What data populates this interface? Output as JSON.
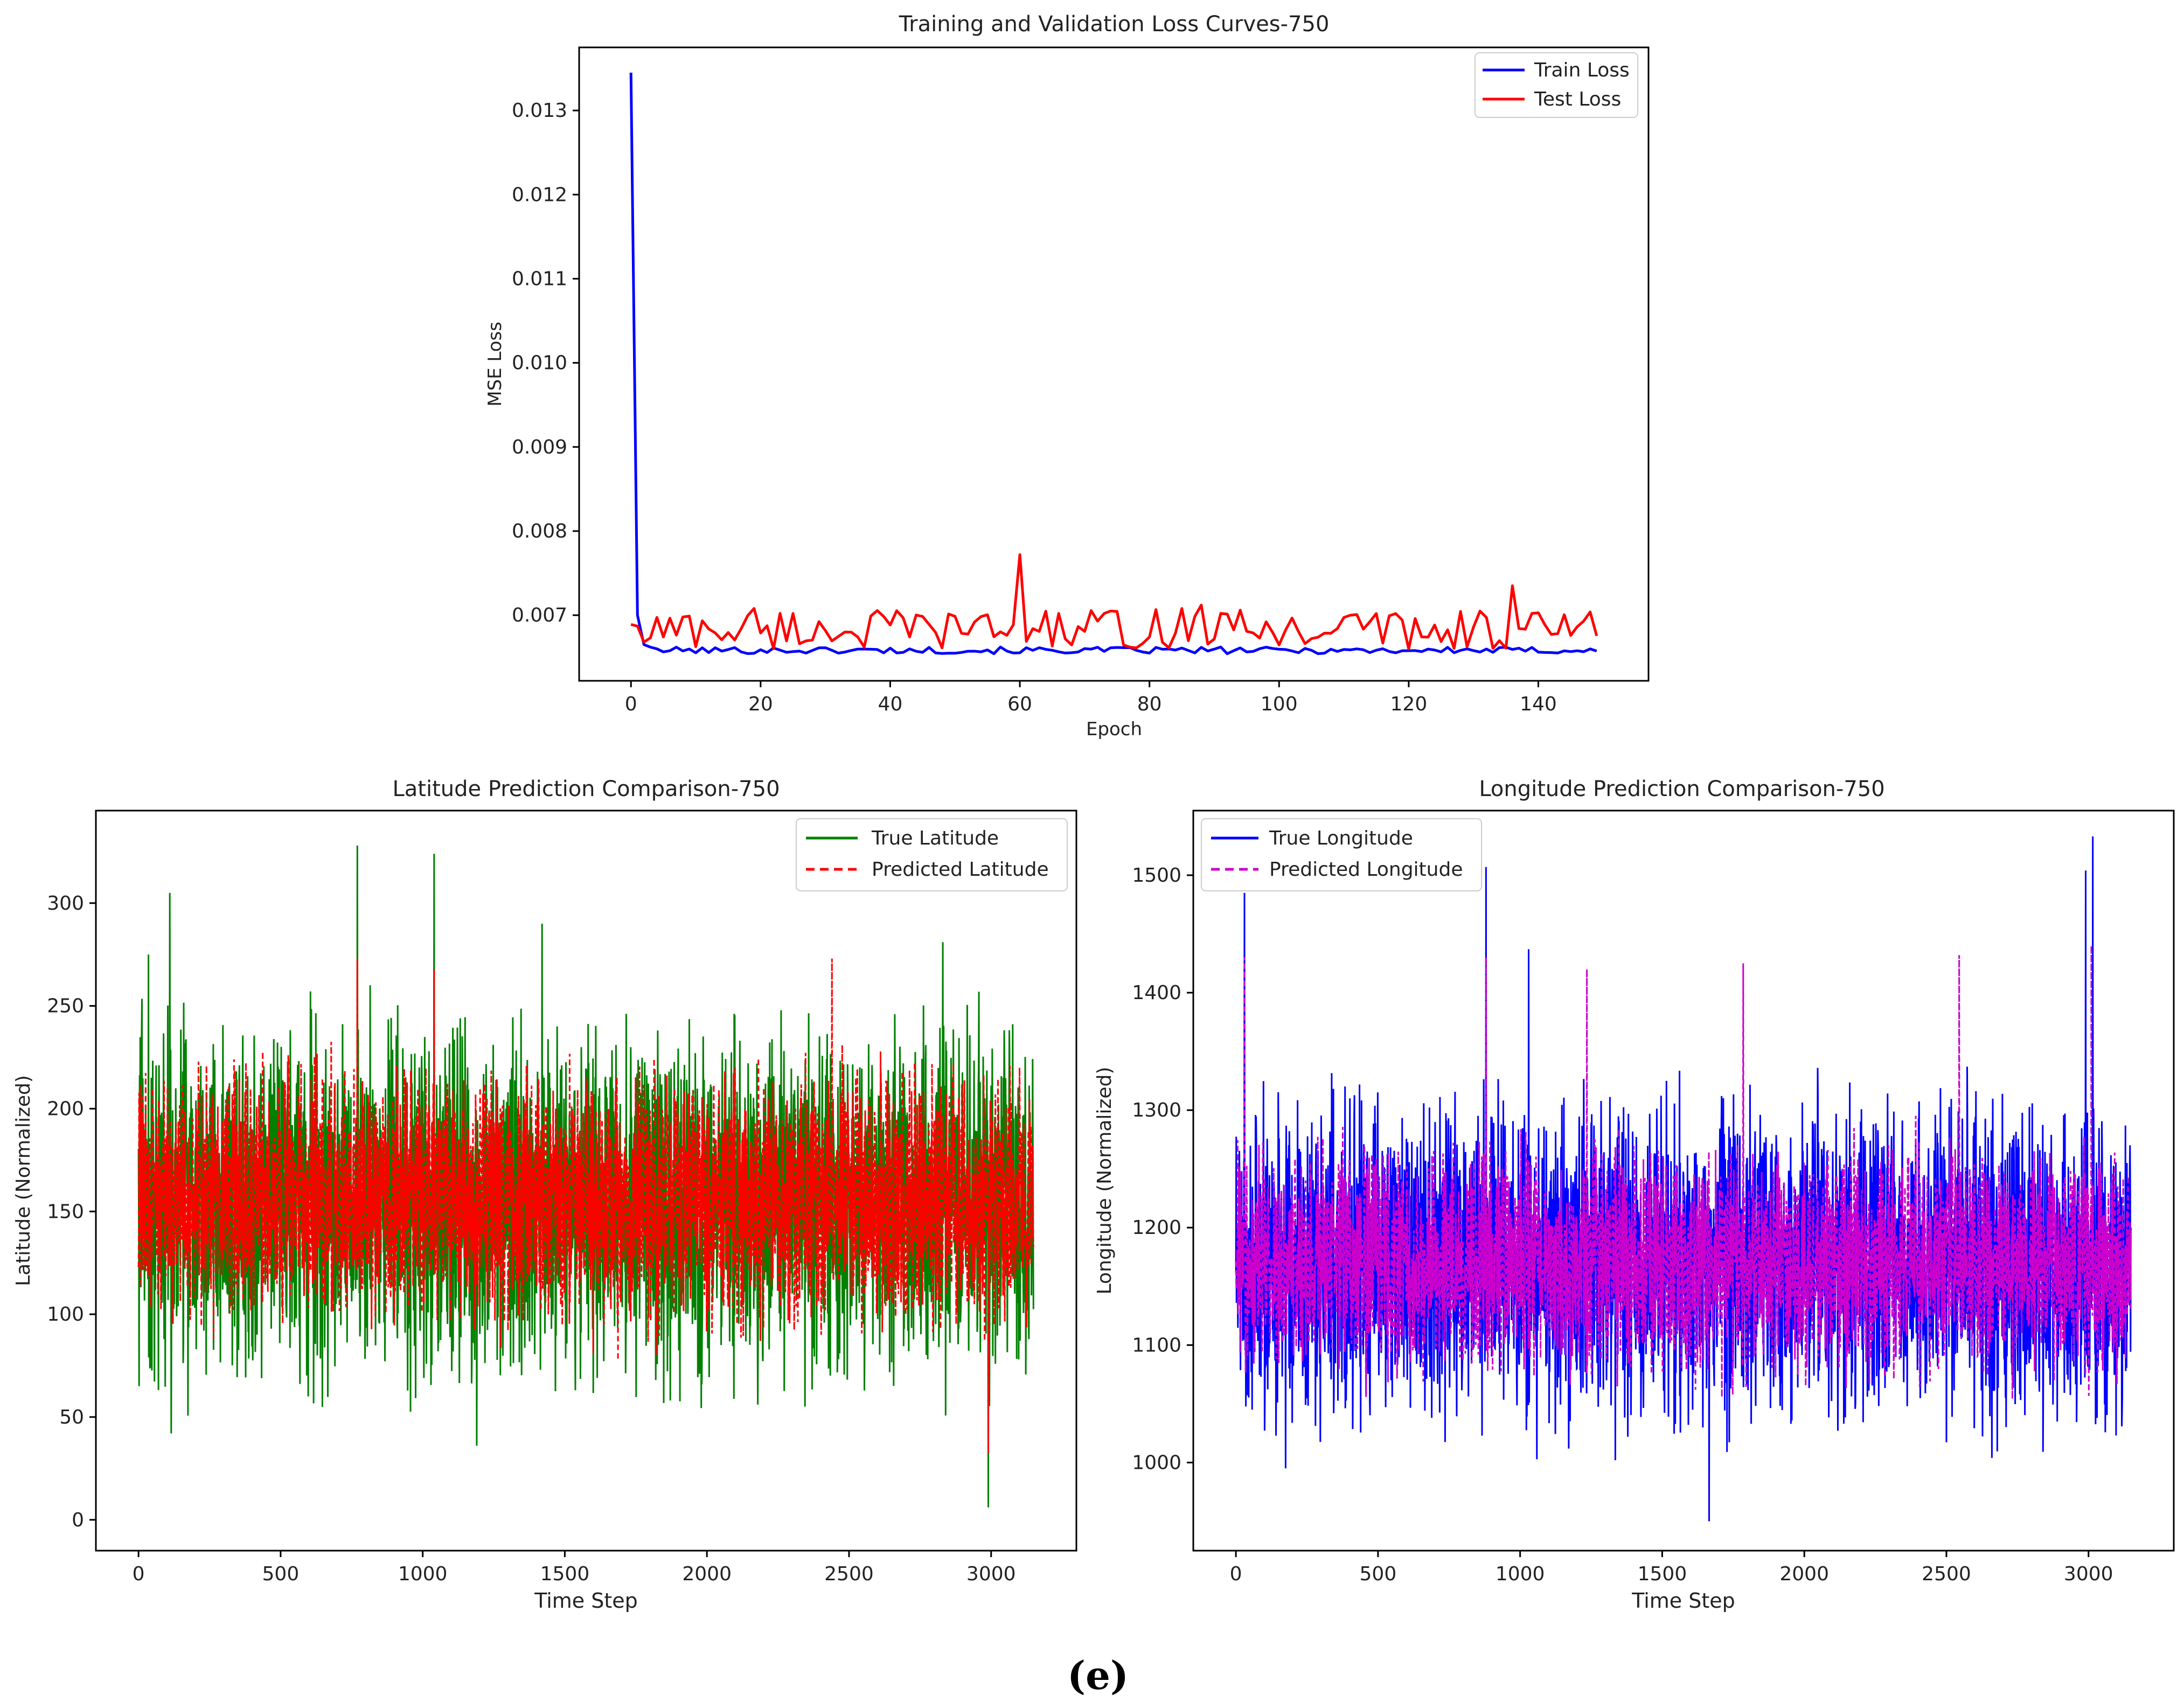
{
  "chart_data": [
    {
      "type": "line",
      "title": "Training and Validation Loss Curves-750",
      "xlabel": "Epoch",
      "ylabel": "MSE Loss",
      "xlim": [
        -8,
        157
      ],
      "ylim": [
        0.00622,
        0.01375
      ],
      "xticks": [
        0,
        20,
        40,
        60,
        80,
        100,
        120,
        140
      ],
      "yticks": [
        0.007,
        0.008,
        0.009,
        0.01,
        0.011,
        0.012,
        0.013
      ],
      "ytick_labels": [
        "0.007",
        "0.008",
        "0.009",
        "0.010",
        "0.011",
        "0.012",
        "0.013"
      ],
      "legend_position": "top-right",
      "series": [
        {
          "name": "Train Loss",
          "color": "#0000ff",
          "x_start": 0,
          "x_end": 149,
          "head": [
            0.01345,
            0.007,
            0.00665,
            0.00662,
            0.0066
          ],
          "base": 0.00657,
          "noise": 4e-05
        },
        {
          "name": "Test Loss",
          "color": "#ff0000",
          "x_start": 0,
          "x_end": 149,
          "head": [
            0.00689,
            0.00687,
            0.00668
          ],
          "base": 0.00676,
          "noise": 0.00024,
          "peaks": [
            [
              60,
              0.00772
            ],
            [
              136,
              0.00735
            ],
            [
              74,
              0.00705
            ],
            [
              85,
              0.00708
            ],
            [
              88,
              0.00712
            ],
            [
              115,
              0.00702
            ],
            [
              19,
              0.00708
            ],
            [
              147,
              0.00693
            ]
          ]
        }
      ]
    },
    {
      "type": "line",
      "title": "Latitude Prediction Comparison-750",
      "xlabel": "Time Step",
      "ylabel": "Latitude (Normalized)",
      "xlim": [
        -150,
        3300
      ],
      "ylim": [
        -15,
        345
      ],
      "xticks": [
        0,
        500,
        1000,
        1500,
        2000,
        2500,
        3000
      ],
      "yticks": [
        0,
        50,
        100,
        150,
        200,
        250,
        300
      ],
      "legend_position": "top-right",
      "series": [
        {
          "name": "True Latitude",
          "color": "#008000",
          "style": "solid",
          "n": 3150,
          "center": 155,
          "spread": 35,
          "spikes": [
            [
              770,
              328
            ],
            [
              1040,
              324
            ],
            [
              110,
              305
            ],
            [
              35,
              275
            ],
            [
              1420,
              290
            ],
            [
              2830,
              281
            ],
            [
              1190,
              36
            ],
            [
              2990,
              6
            ],
            [
              115,
              42
            ]
          ]
        },
        {
          "name": "Predicted Latitude",
          "color": "#ff0000",
          "style": "dashed",
          "n": 3150,
          "center": 155,
          "spread": 25,
          "spikes": [
            [
              770,
              273
            ],
            [
              2440,
              273
            ],
            [
              1040,
              268
            ],
            [
              2990,
              32
            ]
          ]
        }
      ]
    },
    {
      "type": "line",
      "title": "Longitude Prediction Comparison-750",
      "xlabel": "Time Step",
      "ylabel": "Longitude (Normalized)",
      "xlim": [
        -150,
        3300
      ],
      "ylim": [
        925,
        1555
      ],
      "xticks": [
        0,
        500,
        1000,
        1500,
        2000,
        2500,
        3000
      ],
      "yticks": [
        1000,
        1100,
        1200,
        1300,
        1400,
        1500
      ],
      "legend_position": "top-left",
      "series": [
        {
          "name": "True Longitude",
          "color": "#0000ff",
          "style": "solid",
          "n": 3150,
          "center": 1170,
          "spread": 55,
          "spikes": [
            [
              3015,
              1533
            ],
            [
              880,
              1507
            ],
            [
              1030,
              1437
            ],
            [
              2990,
              1504
            ],
            [
              1665,
              950
            ],
            [
              30,
              1485
            ],
            [
              1335,
              1002
            ],
            [
              2660,
              1004
            ],
            [
              175,
              995
            ]
          ]
        },
        {
          "name": "Predicted Longitude",
          "color": "#cc00cc",
          "style": "dashed",
          "n": 3150,
          "center": 1170,
          "spread": 40,
          "spikes": [
            [
              3010,
              1440
            ],
            [
              2545,
              1432
            ],
            [
              30,
              1430
            ],
            [
              880,
              1430
            ],
            [
              1785,
              1425
            ],
            [
              1235,
              1420
            ]
          ]
        }
      ]
    }
  ],
  "caption": "(e)"
}
